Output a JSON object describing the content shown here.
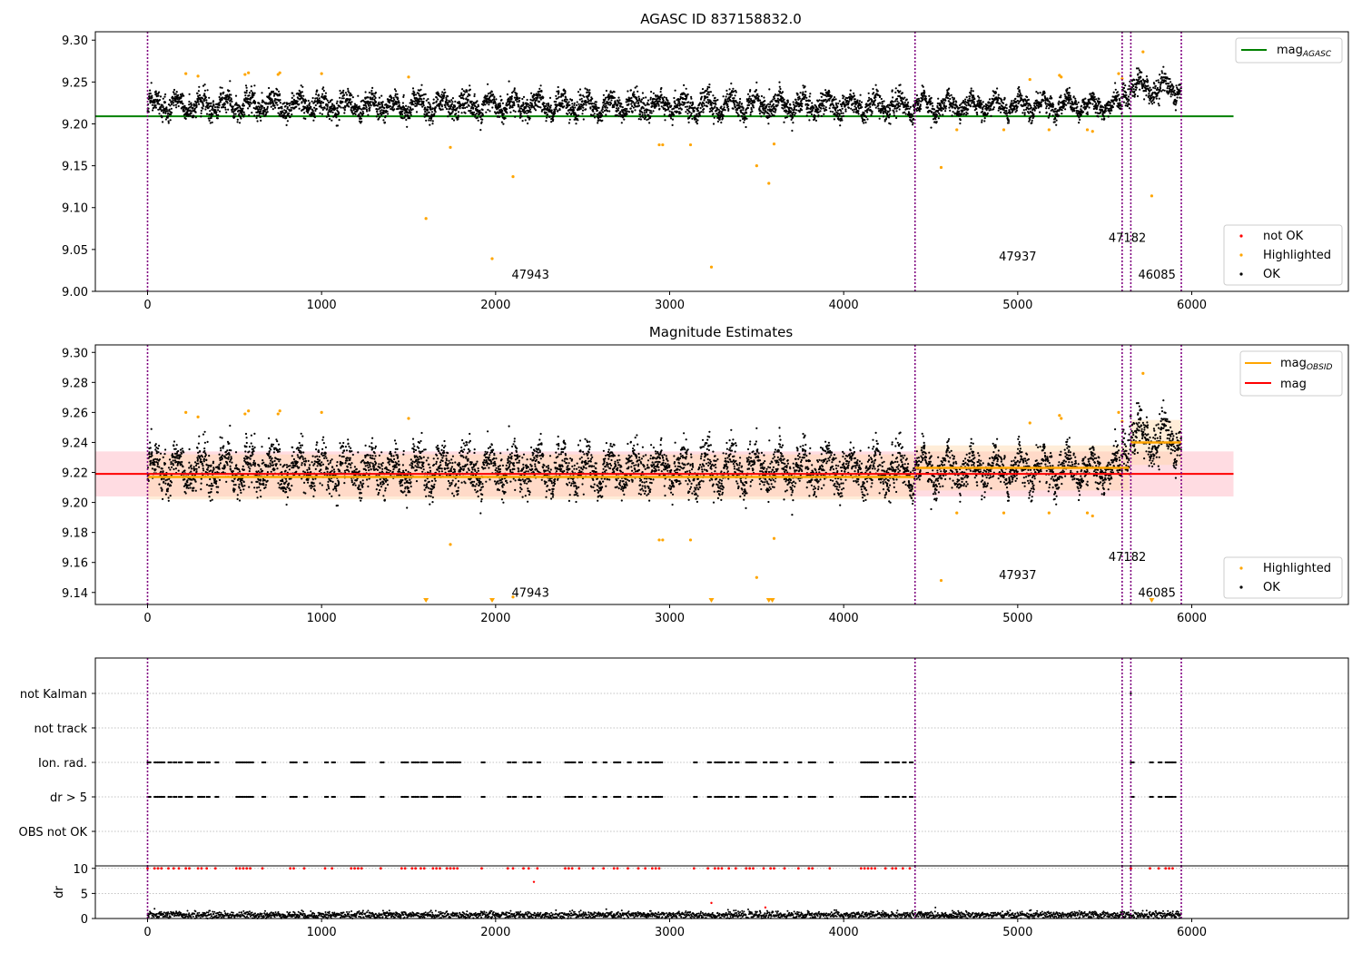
{
  "chart_data": [
    {
      "type": "scatter",
      "title": "AGASC ID 837158832.0",
      "xlim": [
        -300,
        6900
      ],
      "ylim": [
        9.0,
        9.31
      ],
      "x_ticks": [
        0,
        1000,
        2000,
        3000,
        4000,
        5000,
        6000
      ],
      "y_ticks": [
        9.0,
        9.05,
        9.1,
        9.15,
        9.2,
        9.25,
        9.3
      ],
      "obsid_boundaries": [
        0,
        4410,
        5600,
        5650,
        5940
      ],
      "obsid_labels": [
        {
          "label": "47943",
          "x": 2200,
          "y": 9.015
        },
        {
          "label": "47937",
          "x": 5000,
          "y": 9.037
        },
        {
          "label": "47182",
          "x": 5630,
          "y": 9.059
        },
        {
          "label": "46085",
          "x": 5800,
          "y": 9.015
        }
      ],
      "mag_agasc": 9.209,
      "mag_line_range": [
        -300,
        6240
      ],
      "ok_series_segments": [
        {
          "x_range": [
            0,
            4410
          ],
          "level": 9.222,
          "spread": 0.012
        },
        {
          "x_range": [
            4410,
            5600
          ],
          "level": 9.222,
          "spread": 0.01
        },
        {
          "x_range": [
            5600,
            5650
          ],
          "level": 9.24,
          "spread": 0.01
        },
        {
          "x_range": [
            5650,
            5940
          ],
          "level": 9.243,
          "spread": 0.012
        }
      ],
      "highlighted_points": [
        {
          "x": 220,
          "y": 9.26
        },
        {
          "x": 290,
          "y": 9.257
        },
        {
          "x": 560,
          "y": 9.259
        },
        {
          "x": 580,
          "y": 9.261
        },
        {
          "x": 750,
          "y": 9.259
        },
        {
          "x": 760,
          "y": 9.261
        },
        {
          "x": 1000,
          "y": 9.26
        },
        {
          "x": 1500,
          "y": 9.256
        },
        {
          "x": 1600,
          "y": 9.087
        },
        {
          "x": 1740,
          "y": 9.172
        },
        {
          "x": 1980,
          "y": 9.039
        },
        {
          "x": 2100,
          "y": 9.137
        },
        {
          "x": 2940,
          "y": 9.175
        },
        {
          "x": 2960,
          "y": 9.175
        },
        {
          "x": 3120,
          "y": 9.175
        },
        {
          "x": 3240,
          "y": 9.029
        },
        {
          "x": 3500,
          "y": 9.15
        },
        {
          "x": 3570,
          "y": 9.129
        },
        {
          "x": 3600,
          "y": 9.176
        },
        {
          "x": 4560,
          "y": 9.148
        },
        {
          "x": 4650,
          "y": 9.193
        },
        {
          "x": 4920,
          "y": 9.193
        },
        {
          "x": 5070,
          "y": 9.253
        },
        {
          "x": 5180,
          "y": 9.193
        },
        {
          "x": 5240,
          "y": 9.258
        },
        {
          "x": 5250,
          "y": 9.256
        },
        {
          "x": 5400,
          "y": 9.193
        },
        {
          "x": 5430,
          "y": 9.191
        },
        {
          "x": 5580,
          "y": 9.26
        },
        {
          "x": 5600,
          "y": 9.254
        },
        {
          "x": 5720,
          "y": 9.286
        },
        {
          "x": 5770,
          "y": 9.114
        }
      ],
      "legend": [
        "mag",
        "not OK",
        "Highlighted",
        "OK"
      ],
      "legend_mag_subscript": "AGASC"
    },
    {
      "type": "scatter",
      "title": "Magnitude Estimates",
      "xlim": [
        -300,
        6900
      ],
      "ylim": [
        9.132,
        9.305
      ],
      "x_ticks": [
        0,
        1000,
        2000,
        3000,
        4000,
        5000,
        6000
      ],
      "y_ticks": [
        9.14,
        9.16,
        9.18,
        9.2,
        9.22,
        9.24,
        9.26,
        9.28,
        9.3
      ],
      "mag": 9.219,
      "mag_band": [
        9.204,
        9.234
      ],
      "mag_line_range": [
        -300,
        6240
      ],
      "mag_obsid_segments": [
        {
          "x_range": [
            0,
            4410
          ],
          "value": 9.217,
          "band": [
            9.202,
            9.232
          ]
        },
        {
          "x_range": [
            4410,
            5640
          ],
          "value": 9.223,
          "band": [
            9.208,
            9.238
          ]
        },
        {
          "x_range": [
            5650,
            5940
          ],
          "value": 9.24,
          "band": [
            9.225,
            9.255
          ]
        }
      ],
      "obsid_labels": [
        {
          "label": "47943",
          "x": 2200,
          "y": 9.137
        },
        {
          "label": "47937",
          "x": 5000,
          "y": 9.149
        },
        {
          "label": "47182",
          "x": 5630,
          "y": 9.161
        },
        {
          "label": "46085",
          "x": 5800,
          "y": 9.137
        }
      ],
      "offscale_low_markers_x": [
        1600,
        1980,
        3240,
        3570,
        3590,
        5770
      ],
      "legend": [
        "mag",
        "mag",
        "Highlighted",
        "OK"
      ],
      "legend_mag_obsid_subscript": "OBSID"
    },
    {
      "type": "scatter",
      "title": "",
      "category_rows": [
        "not Kalman",
        "not track",
        "Ion. rad.",
        "dr > 5",
        "OBS not OK"
      ],
      "flag_clusters_x": [
        0,
        40,
        60,
        80,
        120,
        150,
        180,
        220,
        240,
        290,
        310,
        340,
        390,
        510,
        530,
        550,
        570,
        590,
        660,
        820,
        840,
        900,
        1020,
        1060,
        1170,
        1190,
        1210,
        1230,
        1340,
        1460,
        1480,
        1520,
        1540,
        1570,
        1590,
        1640,
        1660,
        1680,
        1720,
        1740,
        1760,
        1780,
        1920,
        2070,
        2100,
        2160,
        2190,
        2240,
        2400,
        2420,
        2440,
        2480,
        2560,
        2620,
        2680,
        2700,
        2760,
        2820,
        2860,
        2900,
        2920,
        2940,
        3140,
        3220,
        3260,
        3280,
        3300,
        3340,
        3380,
        3440,
        3460,
        3480,
        3540,
        3580,
        3600,
        3660,
        3740,
        3800,
        3820,
        3920,
        4100,
        4120,
        4140,
        4160,
        4180,
        4240,
        4280,
        4300,
        4340,
        4380,
        5650,
        5760,
        5810,
        5850,
        5870,
        5890
      ],
      "not_kalman_x": [
        5650
      ],
      "dr_ticks": [
        0,
        5,
        10
      ],
      "dr_ylim": [
        0,
        10.5
      ],
      "dr_outliers": [
        {
          "x": 2220,
          "y": 7.3
        },
        {
          "x": 3240,
          "y": 3.1
        },
        {
          "x": 3550,
          "y": 2.2
        }
      ],
      "x_ticks": [
        0,
        1000,
        2000,
        3000,
        4000,
        5000,
        6000
      ],
      "dr_label": "dr"
    }
  ],
  "colors": {
    "ok": "#000000",
    "highlighted": "#ffa500",
    "not_ok": "#ff0000",
    "mag_agasc": "#008000",
    "mag": "#ff0000",
    "mag_obsid": "#ffa500",
    "band": "#ffc0cb",
    "obsid_line": "#800080",
    "grid": "#b0b0b0"
  }
}
